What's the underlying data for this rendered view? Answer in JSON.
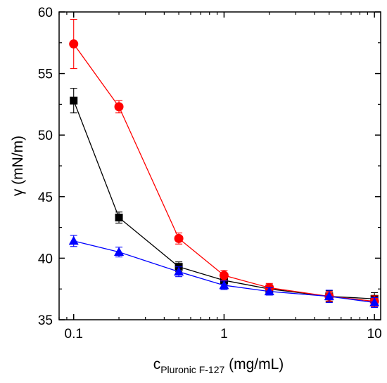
{
  "chart_data": {
    "type": "line",
    "xscale": "log",
    "xlim": [
      0.08,
      11
    ],
    "ylim": [
      35,
      60
    ],
    "xticks": [
      0.1,
      1,
      10
    ],
    "xtick_labels": [
      "0.1",
      "1",
      "10"
    ],
    "yticks": [
      35,
      40,
      45,
      50,
      55,
      60
    ],
    "ytick_labels": [
      "35",
      "40",
      "45",
      "50",
      "55",
      "60"
    ],
    "ylabel": "γ (mN/m)",
    "xlabel": {
      "base": "c",
      "subscript": "Pluronic F-127",
      "suffix": " (mg/mL)"
    },
    "grid": false,
    "legend": "none",
    "series": [
      {
        "color": "#000000",
        "marker": "square",
        "x": [
          0.1,
          0.2,
          0.5,
          1,
          2,
          5,
          10
        ],
        "y": [
          52.8,
          43.3,
          39.3,
          38.2,
          37.5,
          36.9,
          36.7
        ],
        "err": [
          1.0,
          0.45,
          0.4,
          0.35,
          0.35,
          0.45,
          0.5
        ]
      },
      {
        "color": "#ff0000",
        "marker": "circle",
        "x": [
          0.1,
          0.2,
          0.5,
          1,
          2,
          5,
          10
        ],
        "y": [
          57.4,
          52.3,
          41.6,
          38.6,
          37.6,
          36.9,
          36.5
        ],
        "err": [
          2.0,
          0.5,
          0.45,
          0.4,
          0.35,
          0.4,
          0.45
        ]
      },
      {
        "color": "#0000ff",
        "marker": "triangle",
        "x": [
          0.1,
          0.2,
          0.5,
          1,
          2,
          5,
          10
        ],
        "y": [
          41.4,
          40.5,
          38.9,
          37.8,
          37.3,
          36.9,
          36.4
        ],
        "err": [
          0.45,
          0.4,
          0.4,
          0.35,
          0.3,
          0.5,
          0.4
        ]
      }
    ]
  }
}
